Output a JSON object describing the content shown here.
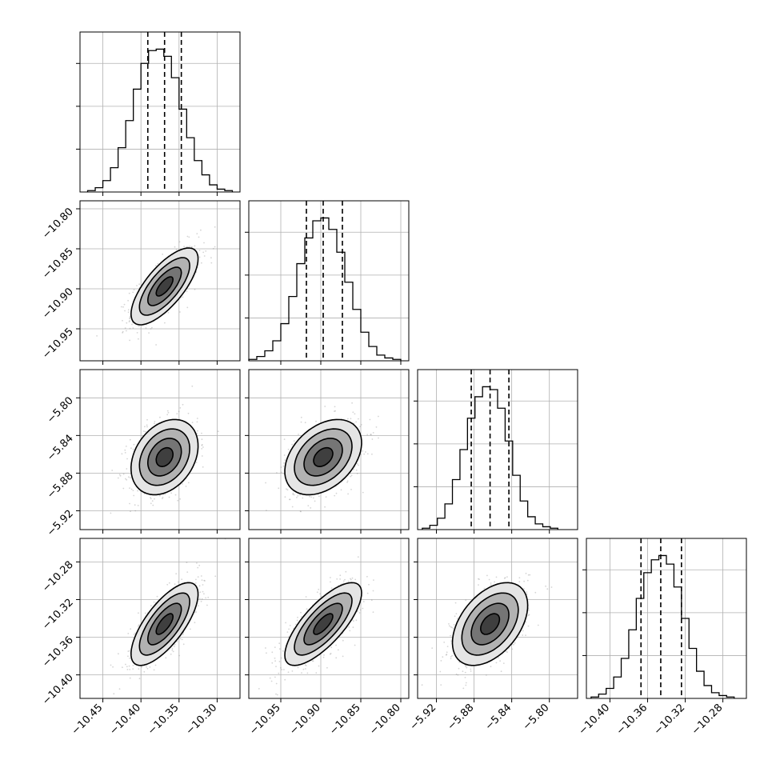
{
  "chart_data": {
    "type": "corner",
    "parameters": [
      {
        "range": [
          -10.48,
          -10.27
        ],
        "ticks": [
          -10.45,
          -10.4,
          -10.35,
          -10.3
        ],
        "tick_labels": [
          "−10.45",
          "−10.40",
          "−10.35",
          "−10.30"
        ],
        "quantiles": [
          -10.391,
          -10.369,
          -10.347
        ],
        "hist_edges": [
          -10.47,
          -10.46,
          -10.45,
          -10.44,
          -10.43,
          -10.42,
          -10.41,
          -10.4,
          -10.39,
          -10.38,
          -10.37,
          -10.36,
          -10.35,
          -10.34,
          -10.33,
          -10.32,
          -10.31,
          -10.3,
          -10.29,
          -10.28
        ],
        "hist_counts": [
          1,
          3,
          8,
          17,
          31,
          50,
          72,
          90,
          99,
          100,
          95,
          80,
          58,
          38,
          22,
          12,
          5,
          2,
          1
        ]
      },
      {
        "range": [
          -10.99,
          -10.79
        ],
        "ticks": [
          -10.95,
          -10.9,
          -10.85,
          -10.8
        ],
        "tick_labels": [
          "−10.95",
          "−10.90",
          "−10.85",
          "−10.80"
        ],
        "quantiles": [
          -10.918,
          -10.897,
          -10.873
        ],
        "hist_edges": [
          -10.99,
          -10.98,
          -10.97,
          -10.96,
          -10.95,
          -10.94,
          -10.93,
          -10.92,
          -10.91,
          -10.9,
          -10.89,
          -10.88,
          -10.87,
          -10.86,
          -10.85,
          -10.84,
          -10.83,
          -10.82,
          -10.81,
          -10.8
        ],
        "hist_counts": [
          1,
          3,
          7,
          14,
          26,
          45,
          68,
          86,
          98,
          100,
          92,
          76,
          55,
          36,
          20,
          10,
          4,
          2,
          1
        ]
      },
      {
        "range": [
          -5.94,
          -5.77
        ],
        "ticks": [
          -5.92,
          -5.88,
          -5.84,
          -5.8
        ],
        "tick_labels": [
          "−5.92",
          "−5.88",
          "−5.84",
          "−5.80"
        ],
        "quantiles": [
          -5.883,
          -5.863,
          -5.843
        ],
        "hist_edges": [
          -5.935,
          -5.927,
          -5.919,
          -5.911,
          -5.903,
          -5.895,
          -5.887,
          -5.879,
          -5.871,
          -5.863,
          -5.855,
          -5.847,
          -5.839,
          -5.831,
          -5.823,
          -5.815,
          -5.807,
          -5.799,
          -5.791
        ],
        "hist_counts": [
          1,
          3,
          8,
          18,
          35,
          56,
          78,
          93,
          100,
          98,
          85,
          62,
          38,
          20,
          9,
          4,
          2,
          1
        ]
      },
      {
        "range": [
          -10.425,
          -10.255
        ],
        "ticks": [
          -10.4,
          -10.36,
          -10.32,
          -10.28
        ],
        "tick_labels": [
          "−10.40",
          "−10.36",
          "−10.32",
          "−10.28"
        ],
        "quantiles": [
          -10.367,
          -10.346,
          -10.324
        ],
        "hist_edges": [
          -10.42,
          -10.412,
          -10.404,
          -10.396,
          -10.388,
          -10.38,
          -10.372,
          -10.364,
          -10.356,
          -10.348,
          -10.34,
          -10.332,
          -10.324,
          -10.316,
          -10.308,
          -10.3,
          -10.292,
          -10.284,
          -10.276,
          -10.268
        ],
        "hist_counts": [
          1,
          3,
          7,
          15,
          28,
          48,
          70,
          88,
          97,
          100,
          94,
          78,
          56,
          35,
          19,
          9,
          4,
          2,
          1
        ]
      }
    ],
    "pairs": [
      {
        "row": 1,
        "col": 0,
        "mean": [
          -10.369,
          -10.897
        ],
        "sd": [
          0.022,
          0.024
        ],
        "rho": 0.72
      },
      {
        "row": 2,
        "col": 0,
        "mean": [
          -10.369,
          -5.863
        ],
        "sd": [
          0.022,
          0.02
        ],
        "rho": 0.3
      },
      {
        "row": 2,
        "col": 1,
        "mean": [
          -10.897,
          -5.863
        ],
        "sd": [
          0.024,
          0.02
        ],
        "rho": 0.38
      },
      {
        "row": 3,
        "col": 0,
        "mean": [
          -10.369,
          -10.346
        ],
        "sd": [
          0.022,
          0.022
        ],
        "rho": 0.72
      },
      {
        "row": 3,
        "col": 1,
        "mean": [
          -10.897,
          -10.346
        ],
        "sd": [
          0.024,
          0.022
        ],
        "rho": 0.75
      },
      {
        "row": 3,
        "col": 2,
        "mean": [
          -5.863,
          -10.346
        ],
        "sd": [
          0.02,
          0.022
        ],
        "rho": 0.45
      }
    ],
    "contour_levels_sigma": [
      0.5,
      1.0,
      1.5,
      2.0
    ],
    "grid": true,
    "colors": {
      "lines": "#000000",
      "grid": "#b0b0b0",
      "points": "#888888",
      "density": "#000000"
    }
  }
}
